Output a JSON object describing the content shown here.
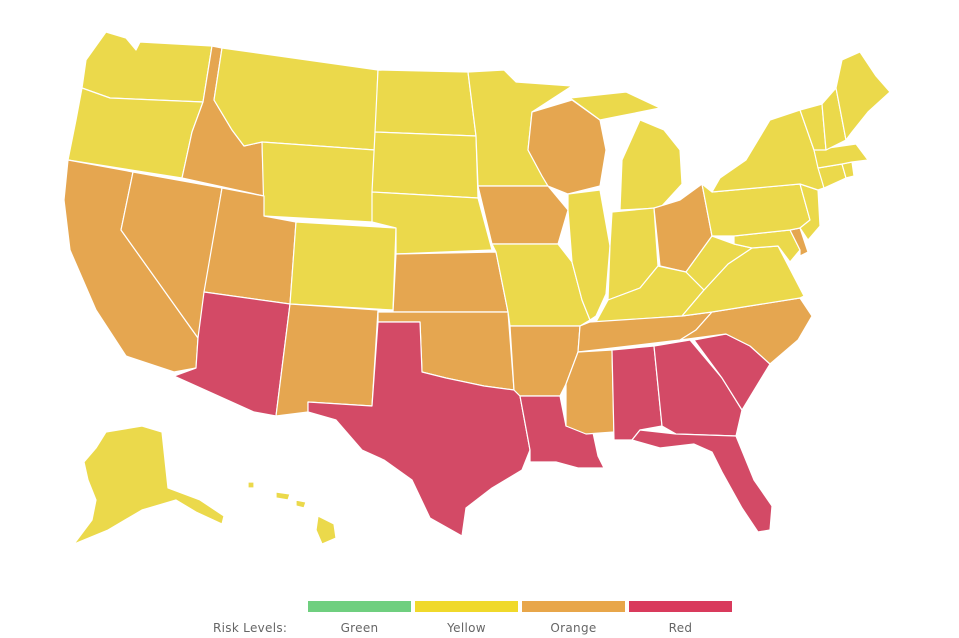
{
  "legend": {
    "title": "Risk Levels:",
    "levels": [
      {
        "key": "green",
        "label": "Green",
        "color": "#6fcf7f"
      },
      {
        "key": "yellow",
        "label": "Yellow",
        "color": "#f0d92b"
      },
      {
        "key": "orange",
        "label": "Orange",
        "color": "#e8a64a"
      },
      {
        "key": "red",
        "label": "Red",
        "color": "#d93a5c"
      }
    ]
  },
  "map_colors": {
    "yellow": "#ebd94b",
    "orange": "#e5a650",
    "red": "#d34a66"
  },
  "states": {
    "WA": "yellow",
    "OR": "yellow",
    "CA": "orange",
    "ID": "orange",
    "NV": "orange",
    "MT": "yellow",
    "WY": "yellow",
    "UT": "orange",
    "AZ": "red",
    "CO": "yellow",
    "NM": "orange",
    "ND": "yellow",
    "SD": "yellow",
    "NE": "yellow",
    "KS": "orange",
    "OK": "orange",
    "TX": "red",
    "MN": "yellow",
    "IA": "orange",
    "MO": "yellow",
    "AR": "orange",
    "LA": "red",
    "WI": "orange",
    "IL": "yellow",
    "MI": "yellow",
    "IN": "yellow",
    "OH": "orange",
    "KY": "yellow",
    "TN": "orange",
    "MS": "orange",
    "AL": "red",
    "GA": "red",
    "FL": "red",
    "SC": "red",
    "NC": "orange",
    "VA": "yellow",
    "WV": "yellow",
    "PA": "yellow",
    "NY": "yellow",
    "NJ": "yellow",
    "DE": "orange",
    "MD": "yellow",
    "CT": "yellow",
    "RI": "yellow",
    "MA": "yellow",
    "VT": "yellow",
    "NH": "yellow",
    "ME": "yellow",
    "AK": "yellow",
    "HI": "yellow"
  }
}
